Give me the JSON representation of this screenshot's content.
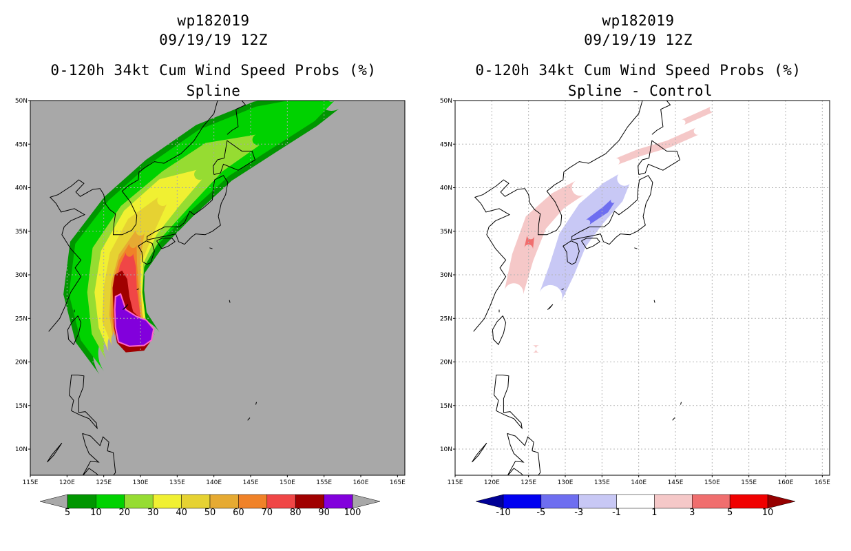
{
  "left": {
    "title_lines": [
      "wp182019",
      "09/19/19 12Z"
    ],
    "product": "0-120h 34kt Cum Wind Speed Probs (%)",
    "subtitle": "Spline"
  },
  "right": {
    "title_lines": [
      "wp182019",
      "09/19/19 12Z"
    ],
    "product": "0-120h 34kt Cum Wind Speed Probs (%)",
    "subtitle": "Spline - Control"
  },
  "chart_data": [
    {
      "type": "heatmap",
      "panel": "left",
      "title": "0-120h 34kt Cum Wind Speed Probs (%)",
      "subtitle": "Spline",
      "xlim": [
        115,
        166
      ],
      "ylim": [
        7,
        50
      ],
      "x_ticks": [
        "115E",
        "120E",
        "125E",
        "130E",
        "135E",
        "140E",
        "145E",
        "150E",
        "155E",
        "160E",
        "165E"
      ],
      "y_ticks": [
        "10N",
        "15N",
        "20N",
        "25N",
        "30N",
        "35N",
        "40N",
        "45N",
        "50N"
      ],
      "background": "#a8a8a8",
      "colorbar": {
        "labels": [
          "5",
          "10",
          "20",
          "30",
          "40",
          "50",
          "60",
          "70",
          "80",
          "90",
          "100"
        ],
        "colors": [
          "#009600",
          "#00d200",
          "#96dc32",
          "#f0f032",
          "#e6d232",
          "#e6aa32",
          "#f08228",
          "#f04646",
          "#a00000",
          "#8200dc"
        ],
        "end_colors": [
          "#a8a8a8",
          "#a8a8a8"
        ]
      },
      "contours": [
        {
          "level": 5,
          "color": "#009600",
          "center": [
            [
              128.5,
              21
            ],
            [
              126,
              24
            ],
            [
              125,
              28
            ],
            [
              125.5,
              32
            ],
            [
              129,
              36
            ],
            [
              134,
              40
            ],
            [
              140,
              44
            ],
            [
              147,
              47
            ],
            [
              153,
              49
            ],
            [
              156,
              50.5
            ]
          ],
          "width": [
            10,
            10.5,
            11,
            11,
            10.5,
            10,
            9,
            7.5,
            5,
            4
          ]
        },
        {
          "level": 10,
          "color": "#00d200",
          "center": [
            [
              128.5,
              21
            ],
            [
              126,
              24
            ],
            [
              125,
              28
            ],
            [
              125.5,
              32
            ],
            [
              129,
              36
            ],
            [
              134,
              40
            ],
            [
              140,
              44
            ],
            [
              147,
              47
            ],
            [
              153,
              49
            ],
            [
              156,
              50.5
            ]
          ],
          "width": [
            8.5,
            9,
            9.5,
            9.5,
            9,
            8.5,
            7.5,
            6,
            3.5,
            1.5
          ]
        },
        {
          "level": 20,
          "color": "#96dc32",
          "center": [
            [
              128.5,
              21.5
            ],
            [
              127,
              24
            ],
            [
              126.5,
              28
            ],
            [
              127,
              32
            ],
            [
              130,
              36
            ],
            [
              135,
              40
            ],
            [
              140,
              43.5
            ],
            [
              146,
              45.5
            ]
          ],
          "width": [
            7,
            7.5,
            7.5,
            7.5,
            7,
            6,
            4.5,
            1.5
          ]
        },
        {
          "level": 30,
          "color": "#f0f032",
          "center": [
            [
              128.5,
              22
            ],
            [
              127.5,
              24.5
            ],
            [
              127,
              28
            ],
            [
              127.5,
              32
            ],
            [
              130,
              36
            ],
            [
              134,
              39.5
            ],
            [
              138,
              41.5
            ]
          ],
          "width": [
            6,
            6.5,
            6.5,
            6,
            5.5,
            4.5,
            1.5
          ]
        },
        {
          "level": 40,
          "color": "#e6d232",
          "center": [
            [
              128.5,
              22.5
            ],
            [
              127.5,
              25
            ],
            [
              127.5,
              28.5
            ],
            [
              128,
              32
            ],
            [
              130,
              35.5
            ],
            [
              133,
              38.5
            ]
          ],
          "width": [
            5,
            5.5,
            5,
            4.5,
            4,
            1.5
          ]
        },
        {
          "level": 50,
          "color": "#e6aa32",
          "center": [
            [
              128.5,
              23
            ],
            [
              128,
              25.5
            ],
            [
              128,
              29
            ],
            [
              128.5,
              32
            ],
            [
              130,
              35
            ]
          ],
          "width": [
            4.5,
            4.5,
            4,
            3,
            1.2
          ]
        },
        {
          "level": 60,
          "color": "#f08228",
          "center": [
            [
              128.5,
              23
            ],
            [
              128,
              25.5
            ],
            [
              128,
              29
            ],
            [
              128.3,
              31.5
            ],
            [
              129,
              33.5
            ]
          ],
          "width": [
            4,
            4,
            3.5,
            2.5,
            1
          ]
        },
        {
          "level": 70,
          "color": "#f04646",
          "center": [
            [
              128.5,
              23
            ],
            [
              128.2,
              25.5
            ],
            [
              128,
              28.5
            ],
            [
              128.3,
              31
            ],
            [
              128.5,
              32.5
            ]
          ],
          "width": [
            3.6,
            3.5,
            3,
            2.2,
            1
          ]
        }
      ]
    },
    {
      "type": "heatmap",
      "panel": "right",
      "title": "0-120h 34kt Cum Wind Speed Probs (%)",
      "subtitle": "Spline - Control",
      "xlim": [
        115,
        166
      ],
      "ylim": [
        7,
        50
      ],
      "x_ticks": [
        "115E",
        "120E",
        "125E",
        "130E",
        "135E",
        "140E",
        "145E",
        "150E",
        "155E",
        "160E",
        "165E"
      ],
      "y_ticks": [
        "10N",
        "15N",
        "20N",
        "25N",
        "30N",
        "35N",
        "40N",
        "45N",
        "50N"
      ],
      "background": "#ffffff",
      "colorbar": {
        "labels": [
          "-10",
          "-5",
          "-3",
          "-1",
          "1",
          "3",
          "5",
          "10"
        ],
        "colors": [
          "#0000f0",
          "#6e6ef0",
          "#c8c8f5",
          "#ffffff",
          "#f5c8c8",
          "#f06e6e",
          "#f00000"
        ],
        "end_colors": [
          "#000096",
          "#960000"
        ]
      },
      "difference_regions": [
        {
          "level": "1 to 3",
          "color": "#f5c8c8",
          "centerline": [
            [
              123,
              28
            ],
            [
              124.2,
              32
            ],
            [
              126,
              36
            ],
            [
              129,
              38.5
            ],
            [
              132,
              40
            ]
          ],
          "width": [
            2.6,
            3,
            3.2,
            2.6,
            2.2
          ]
        },
        {
          "level": "3 to 5",
          "color": "#f06e6e",
          "centerline": [
            [
              125,
              33
            ],
            [
              125.3,
              34.5
            ]
          ],
          "width": [
            1.2,
            1
          ]
        },
        {
          "level": "-1 to -3",
          "color": "#c8c8f5",
          "centerline": [
            [
              128,
              27.5
            ],
            [
              129.5,
              30.5
            ],
            [
              131,
              34
            ],
            [
              133.5,
              37
            ],
            [
              136.5,
              39.5
            ],
            [
              138,
              41
            ]
          ],
          "width": [
            3.2,
            3.6,
            4,
            4.2,
            3.6,
            2
          ]
        },
        {
          "level": "-3 to -5",
          "color": "#6e6ef0",
          "centerline": [
            [
              133,
              36
            ],
            [
              135.5,
              37.5
            ],
            [
              136.5,
              38.5
            ]
          ],
          "width": [
            0.8,
            1,
            0.6
          ]
        },
        {
          "level": "1 to 3",
          "color": "#f5c8c8",
          "centerline": [
            [
              137,
              43
            ],
            [
              140,
              44
            ],
            [
              144,
              45
            ],
            [
              148,
              46.5
            ]
          ],
          "width": [
            0.9,
            1,
            1,
            1
          ]
        },
        {
          "level": "1 to 3",
          "color": "#f5c8c8",
          "centerline": [
            [
              146,
              47.5
            ],
            [
              150,
              49
            ]
          ],
          "width": [
            0.8,
            0.8
          ]
        },
        {
          "level": "1 to 3",
          "color": "#f5c8c8",
          "centerline": [
            [
              125.5,
              21.5
            ],
            [
              126.5,
              21.5
            ]
          ],
          "width": [
            1,
            1
          ]
        }
      ]
    }
  ]
}
